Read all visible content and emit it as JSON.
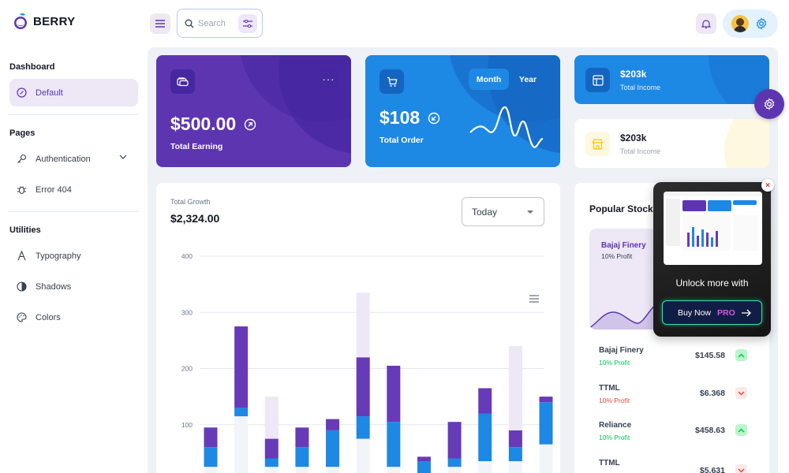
{
  "brand": {
    "name": "BERRY"
  },
  "header": {
    "search_placeholder": "Search",
    "icons": [
      "menu-icon",
      "search-icon",
      "tune-icon",
      "bell-icon",
      "avatar",
      "gear-icon"
    ]
  },
  "sidebar": {
    "sections": [
      {
        "title": "Dashboard",
        "items": [
          {
            "label": "Default",
            "icon": "dashboard-icon",
            "active": true
          }
        ]
      },
      {
        "title": "Pages",
        "items": [
          {
            "label": "Authentication",
            "icon": "key-icon",
            "expandable": true
          },
          {
            "label": "Error 404",
            "icon": "bug-icon"
          }
        ]
      },
      {
        "title": "Utilities",
        "items": [
          {
            "label": "Typography",
            "icon": "typography-icon"
          },
          {
            "label": "Shadows",
            "icon": "shadow-icon"
          },
          {
            "label": "Colors",
            "icon": "palette-icon"
          }
        ]
      }
    ]
  },
  "cards": {
    "earning": {
      "value": "$500.00",
      "label": "Total Earning"
    },
    "order": {
      "value": "$108",
      "label": "Total Order",
      "toggle": [
        "Month",
        "Year"
      ],
      "active_toggle": "Month"
    },
    "income1": {
      "value": "$203k",
      "label": "Total Income"
    },
    "income2": {
      "value": "$203k",
      "label": "Total Income"
    }
  },
  "growth": {
    "label": "Total Growth",
    "value": "$2,324.00",
    "period": "Today"
  },
  "chart_data": {
    "type": "bar",
    "stacked": true,
    "ylim": [
      0,
      400
    ],
    "yticks": [
      100,
      200,
      300,
      400
    ],
    "series": [
      {
        "color": "#f1f5f9",
        "values": [
          25,
          115,
          25,
          25,
          25,
          75,
          25,
          10,
          25,
          35,
          35,
          65
        ]
      },
      {
        "color": "#1e88e5",
        "values": [
          35,
          15,
          15,
          35,
          65,
          40,
          80,
          25,
          15,
          85,
          25,
          75
        ]
      },
      {
        "color": "#673ab7",
        "values": [
          35,
          145,
          35,
          35,
          20,
          105,
          100,
          8,
          65,
          45,
          30,
          10
        ]
      },
      {
        "color": "#ede7f6",
        "values": [
          0,
          0,
          75,
          0,
          0,
          115,
          0,
          0,
          0,
          0,
          150,
          0
        ]
      }
    ],
    "grid": true
  },
  "stocks": {
    "title": "Popular Stocks",
    "featured": {
      "name": "Bajaj Finery",
      "profit": "10% Profit"
    },
    "rows": [
      {
        "name": "Bajaj Finery",
        "profit": "10% Profit",
        "price": "$145.58",
        "trend": "up"
      },
      {
        "name": "TTML",
        "profit": "10% Profit",
        "price": "$6.368",
        "trend": "down"
      },
      {
        "name": "Reliance",
        "profit": "10% Profit",
        "price": "$458.63",
        "trend": "up"
      },
      {
        "name": "TTML",
        "profit": "",
        "price": "$5.631",
        "trend": "down"
      }
    ]
  },
  "promo": {
    "text": "Unlock more with",
    "button": "Buy Now",
    "badge": "PRO"
  },
  "colors": {
    "primary": "#5e35b1",
    "secondary": "#1e88e5",
    "success": "#00c853",
    "error": "#f44336"
  }
}
